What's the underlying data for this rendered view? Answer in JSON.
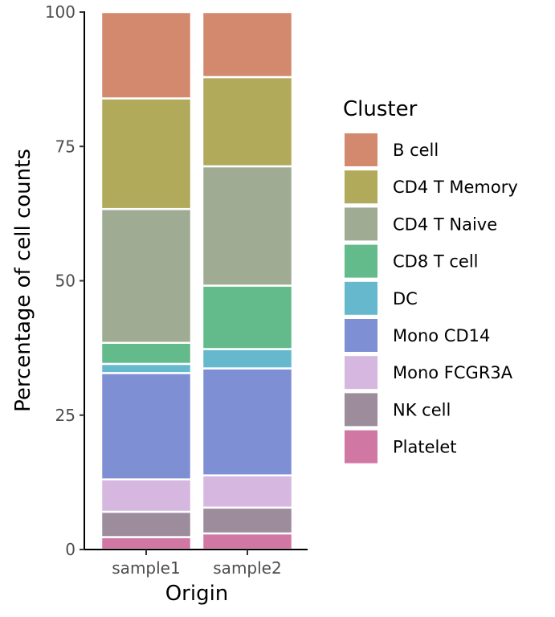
{
  "chart_data": {
    "type": "bar",
    "stacked": true,
    "categories": [
      "sample1",
      "sample2"
    ],
    "xlabel": "Origin",
    "ylabel": "Percentage of cell counts",
    "ylim": [
      0,
      100
    ],
    "yticks": [
      "0",
      "25",
      "50",
      "75",
      "100"
    ],
    "legend_title": "Cluster",
    "legend_position": "right",
    "grid": false,
    "series": [
      {
        "name": "Platelet",
        "color": "#D177A4",
        "values": [
          2.3,
          3.0
        ]
      },
      {
        "name": "NK cell",
        "color": "#9C8C9C",
        "values": [
          4.7,
          4.8
        ]
      },
      {
        "name": "Mono FCGR3A",
        "color": "#D5B7E0",
        "values": [
          6.0,
          6.0
        ]
      },
      {
        "name": "Mono CD14",
        "color": "#7F8FD4",
        "values": [
          19.7,
          19.9
        ]
      },
      {
        "name": "DC",
        "color": "#66B8CC",
        "values": [
          1.7,
          3.6
        ]
      },
      {
        "name": "CD8 T cell",
        "color": "#63BA8B",
        "values": [
          3.9,
          11.8
        ]
      },
      {
        "name": "CD4 T Naive",
        "color": "#9FAC93",
        "values": [
          24.8,
          22.2
        ]
      },
      {
        "name": "CD4 T Memory",
        "color": "#B0AA5A",
        "values": [
          20.5,
          16.6
        ]
      },
      {
        "name": "B cell",
        "color": "#D2896D",
        "values": [
          16.0,
          12.1
        ]
      }
    ]
  }
}
